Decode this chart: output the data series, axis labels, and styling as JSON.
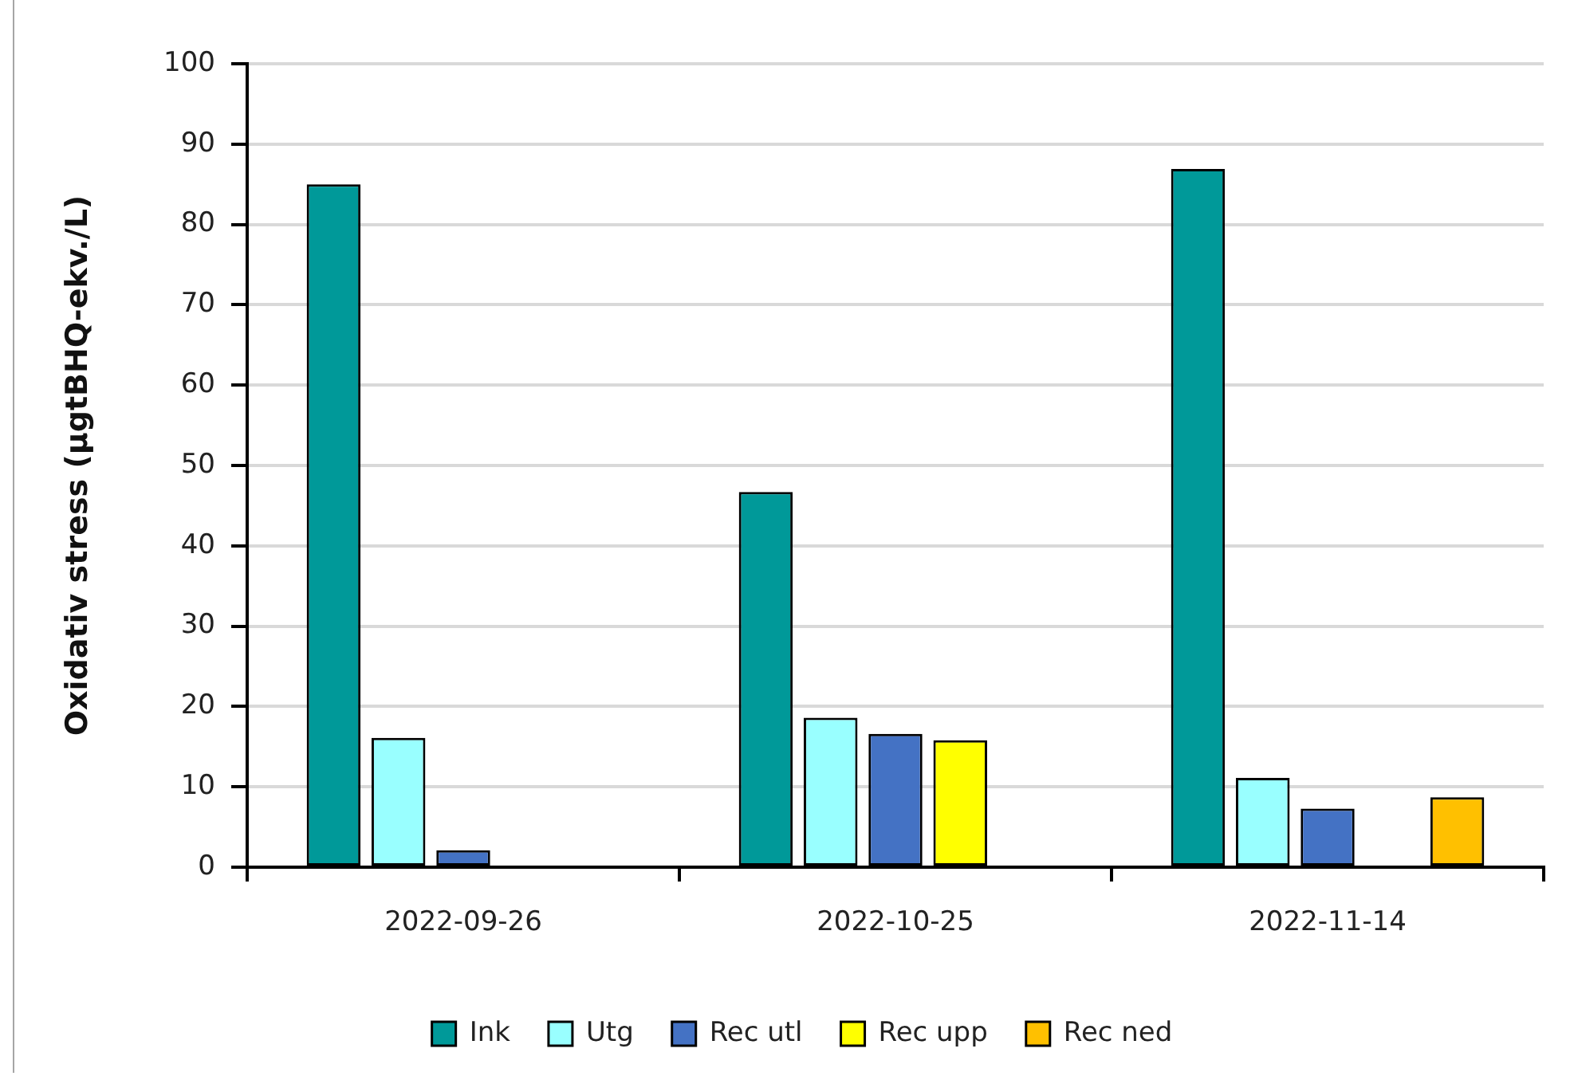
{
  "chart_data": {
    "type": "bar",
    "ylabel": "Oxidativ stress (µgtBHQ-ekv./L)",
    "categories": [
      "2022-09-26",
      "2022-10-25",
      "2022-11-14"
    ],
    "series": [
      {
        "name": "Ink",
        "color": "#009999",
        "values": [
          85,
          46.7,
          86.9
        ]
      },
      {
        "name": "Utg",
        "color": "#99ffff",
        "values": [
          16.1,
          18.6,
          11.1
        ]
      },
      {
        "name": "Rec utl",
        "color": "#4472c4",
        "values": [
          2.1,
          16.6,
          7.3
        ]
      },
      {
        "name": "Rec upp",
        "color": "#ffff00",
        "values": [
          null,
          15.8,
          null
        ]
      },
      {
        "name": "Rec ned",
        "color": "#ffc000",
        "values": [
          null,
          null,
          8.7
        ]
      }
    ],
    "ylim": [
      0,
      100
    ],
    "yticks": [
      0,
      10,
      20,
      30,
      40,
      50,
      60,
      70,
      80,
      90,
      100
    ],
    "grid": "y",
    "legend": "bottom"
  }
}
